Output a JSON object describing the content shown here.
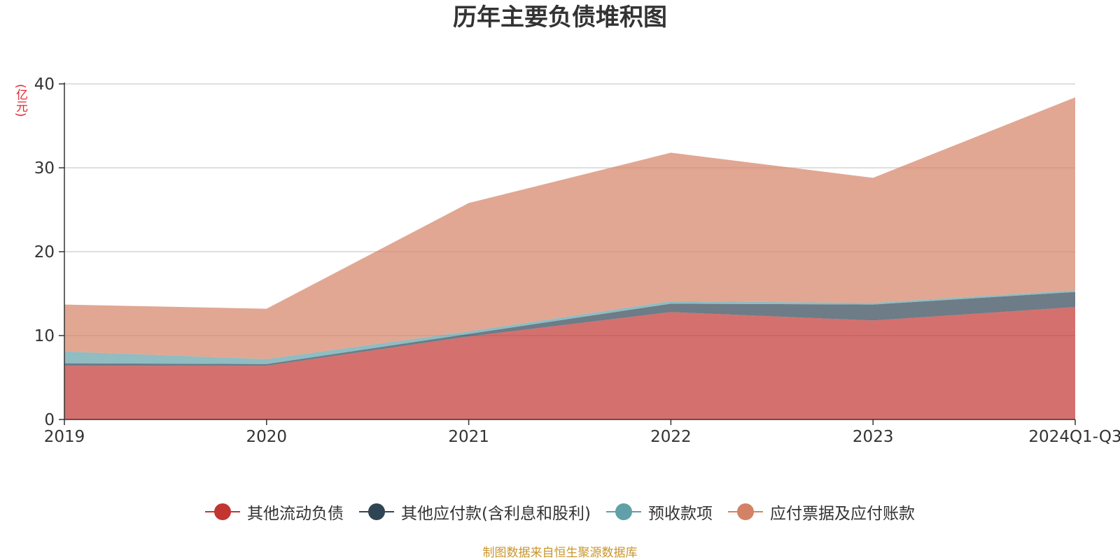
{
  "chart_data": {
    "type": "area",
    "stacked": true,
    "title": "历年主要负债堆积图",
    "ylabel": "(亿元)",
    "xlabel": "",
    "categories": [
      "2019",
      "2020",
      "2021",
      "2022",
      "2023",
      "2024Q1-Q3"
    ],
    "ylim": [
      0,
      40
    ],
    "yticks": [
      0,
      10,
      20,
      30,
      40
    ],
    "grid": true,
    "legend_position": "bottom",
    "series": [
      {
        "name": "其他流动负债",
        "color": "#c23531",
        "values": [
          6.4,
          6.4,
          9.9,
          12.8,
          11.8,
          13.4
        ]
      },
      {
        "name": "其他应付款(含利息和股利)",
        "color": "#2f4554",
        "values": [
          0.3,
          0.2,
          0.3,
          1.0,
          1.9,
          1.8
        ]
      },
      {
        "name": "预收款项",
        "color": "#61a0a8",
        "values": [
          1.4,
          0.6,
          0.3,
          0.3,
          0.2,
          0.2
        ]
      },
      {
        "name": "应付票据及应付账款",
        "color": "#d48265",
        "values": [
          5.6,
          6.0,
          15.3,
          17.7,
          14.9,
          23.0
        ]
      }
    ]
  },
  "footer": {
    "source": "制图数据来自恒生聚源数据库"
  }
}
